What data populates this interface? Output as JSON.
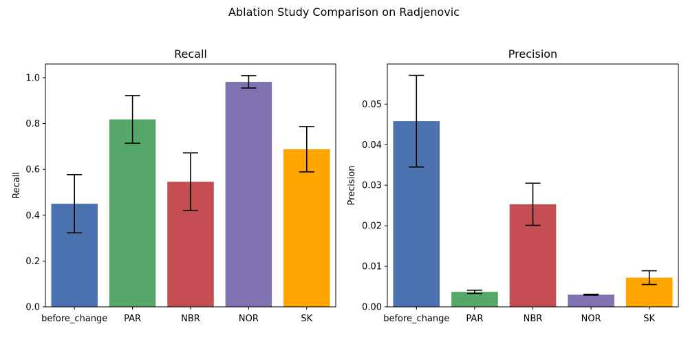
{
  "figure": {
    "title": "Ablation Study Comparison on Radjenovic"
  },
  "chart_data": [
    {
      "type": "bar",
      "title": "Recall",
      "xlabel": "",
      "ylabel": "Recall",
      "categories": [
        "before_change",
        "PAR",
        "NBR",
        "NOR",
        "SK"
      ],
      "values": [
        0.45,
        0.818,
        0.546,
        0.982,
        0.688
      ],
      "errors": [
        0.127,
        0.104,
        0.126,
        0.027,
        0.099
      ],
      "colors": [
        "#4c72b0",
        "#55a868",
        "#c44e52",
        "#8172b2",
        "#ffa500"
      ],
      "ylim": [
        0,
        1.06
      ],
      "yticks": [
        0.0,
        0.2,
        0.4,
        0.6,
        0.8,
        1.0
      ],
      "ytick_labels": [
        "0.0",
        "0.2",
        "0.4",
        "0.6",
        "0.8",
        "1.0"
      ],
      "grid": false
    },
    {
      "type": "bar",
      "title": "Precision",
      "xlabel": "",
      "ylabel": "Precision",
      "categories": [
        "before_change",
        "PAR",
        "NBR",
        "NOR",
        "SK"
      ],
      "values": [
        0.0458,
        0.0037,
        0.0253,
        0.003,
        0.0072
      ],
      "errors": [
        0.0113,
        0.0004,
        0.0052,
        0.0001,
        0.0017
      ],
      "colors": [
        "#4c72b0",
        "#55a868",
        "#c44e52",
        "#8172b2",
        "#ffa500"
      ],
      "ylim": [
        0,
        0.0599
      ],
      "yticks": [
        0.0,
        0.01,
        0.02,
        0.03,
        0.04,
        0.05
      ],
      "ytick_labels": [
        "0.00",
        "0.01",
        "0.02",
        "0.03",
        "0.04",
        "0.05"
      ],
      "grid": false
    }
  ]
}
